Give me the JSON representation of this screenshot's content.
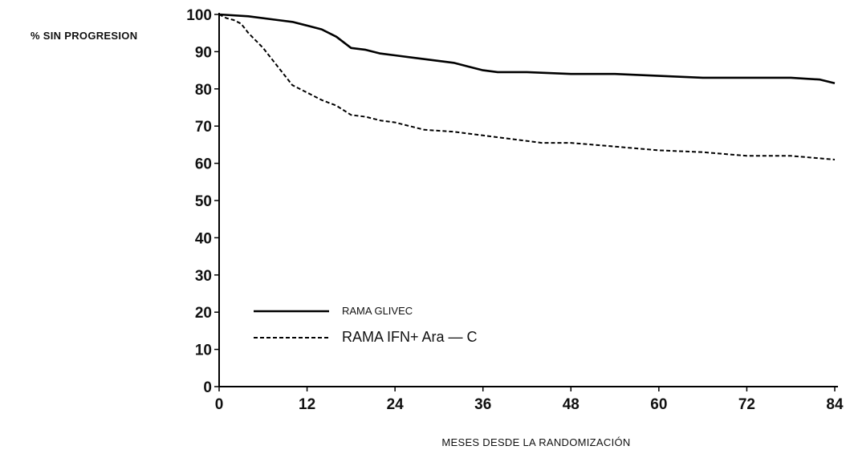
{
  "chart_data": {
    "type": "line",
    "title": "",
    "ylabel": "% SIN PROGRESION",
    "xlabel": "MESES DESDE LA RANDOMIZACIÓN",
    "xlim": [
      0,
      84
    ],
    "ylim": [
      0,
      100
    ],
    "xticks": [
      0,
      12,
      24,
      36,
      48,
      60,
      72,
      84
    ],
    "xtick_labels": [
      "0",
      "12",
      "24",
      "36",
      "48",
      "60",
      "72",
      "84"
    ],
    "yticks": [
      0,
      10,
      20,
      30,
      40,
      50,
      60,
      70,
      80,
      90,
      100
    ],
    "ytick_labels": [
      "0",
      "10",
      "20",
      "30",
      "40",
      "50",
      "60",
      "70",
      "80",
      "90",
      "100"
    ],
    "grid": false,
    "legend_position": "bottom-left",
    "series": [
      {
        "name": "RAMA GLIVEC",
        "style": "solid",
        "color": "#000000",
        "x": [
          0,
          4,
          8,
          10,
          12,
          14,
          16,
          18,
          20,
          22,
          24,
          28,
          32,
          34,
          36,
          38,
          42,
          48,
          54,
          60,
          66,
          72,
          78,
          82,
          84
        ],
        "y": [
          100,
          99.5,
          98.5,
          98,
          97,
          96,
          94,
          91,
          90.5,
          89.5,
          89,
          88,
          87,
          86,
          85,
          84.5,
          84.5,
          84,
          84,
          83.5,
          83,
          83,
          83,
          82.5,
          81.5
        ]
      },
      {
        "name": "RAMA IFN+ Ara",
        "legend_suffix": "— C",
        "style": "dashed",
        "color": "#000000",
        "x": [
          0,
          1,
          2,
          3,
          4,
          6,
          8,
          10,
          12,
          14,
          16,
          18,
          20,
          22,
          24,
          28,
          32,
          36,
          40,
          44,
          48,
          54,
          60,
          66,
          72,
          78,
          84
        ],
        "y": [
          100,
          99,
          98.5,
          97.5,
          95,
          91,
          86,
          81,
          79,
          77,
          75.5,
          73,
          72.5,
          71.5,
          71,
          69,
          68.5,
          67.5,
          66.5,
          65.5,
          65.5,
          64.5,
          63.5,
          63,
          62,
          62,
          61
        ]
      }
    ]
  }
}
